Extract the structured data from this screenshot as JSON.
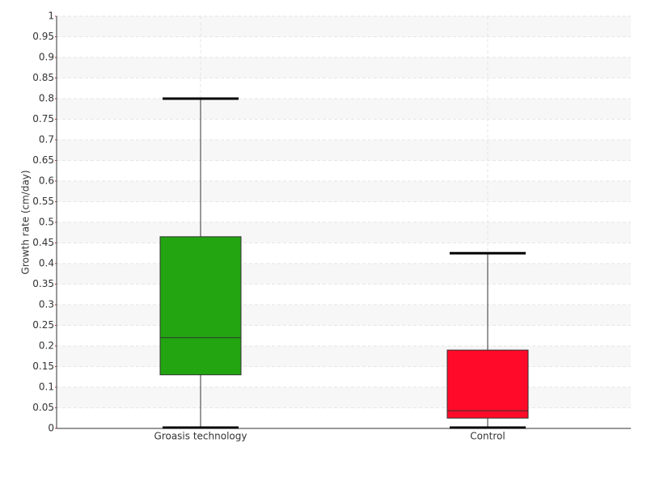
{
  "chart_data": {
    "type": "box",
    "y_label": "Growth rate (cm/day)",
    "categories": [
      "Groasis technology",
      "Control"
    ],
    "boxes": [
      {
        "color": "#22a511",
        "min": 0,
        "q1": 0.13,
        "median": 0.22,
        "q3": 0.465,
        "max": 0.8
      },
      {
        "color": "#ff0a28",
        "min": 0,
        "q1": 0.025,
        "median": 0.043,
        "q3": 0.19,
        "max": 0.425
      }
    ],
    "ylim": [
      0,
      1
    ],
    "yticks": [
      0,
      0.05,
      0.1,
      0.15,
      0.2,
      0.25,
      0.3,
      0.35,
      0.4,
      0.45,
      0.5,
      0.55,
      0.6,
      0.65,
      0.7,
      0.75,
      0.8,
      0.85,
      0.9,
      0.95,
      1
    ],
    "grid": true
  }
}
